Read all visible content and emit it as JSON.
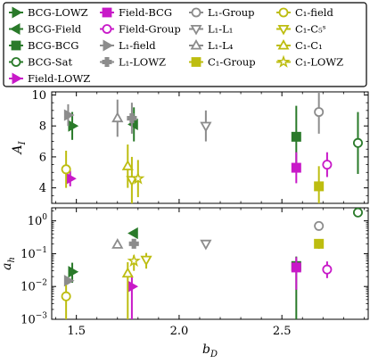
{
  "chart_data": [
    {
      "type": "scatter",
      "ylabel": "A_I",
      "ylim": [
        3,
        10.2
      ],
      "xlim": [
        1.38,
        2.92
      ],
      "yticks": [
        "4",
        "6",
        "8",
        "10"
      ],
      "series": [
        {
          "name": "BCG-LOWZ",
          "color": "#2a7a2a",
          "marker": "tri-right",
          "filled": true,
          "points": [
            {
              "x": 1.48,
              "y": 8.0,
              "err": [
                0.9,
                0.9
              ]
            }
          ]
        },
        {
          "name": "BCG-Field",
          "color": "#2a7a2a",
          "marker": "tri-left",
          "filled": true,
          "points": [
            {
              "x": 1.78,
              "y": 8.1,
              "err": [
                1.1,
                1.1
              ]
            }
          ]
        },
        {
          "name": "BCG-BCG",
          "color": "#2a7a2a",
          "marker": "square",
          "filled": true,
          "points": [
            {
              "x": 2.57,
              "y": 7.3,
              "err": [
                2.3,
                2.0
              ]
            }
          ]
        },
        {
          "name": "BCG-Sat",
          "color": "#2a7a2a",
          "marker": "circle",
          "filled": false,
          "points": [
            {
              "x": 2.87,
              "y": 6.9,
              "err": [
                2.0,
                2.0
              ]
            }
          ]
        },
        {
          "name": "Field-LOWZ",
          "color": "#c819c8",
          "marker": "tri-right",
          "filled": true,
          "points": [
            {
              "x": 1.47,
              "y": 4.6,
              "err": [
                0.5,
                0.5
              ]
            }
          ]
        },
        {
          "name": "Field-BCG",
          "color": "#c819c8",
          "marker": "square",
          "filled": true,
          "points": [
            {
              "x": 2.57,
              "y": 5.3,
              "err": [
                1.0,
                1.0
              ]
            }
          ]
        },
        {
          "name": "Field-Group",
          "color": "#c819c8",
          "marker": "circle",
          "filled": false,
          "points": [
            {
              "x": 2.72,
              "y": 5.5,
              "err": [
                0.8,
                0.8
              ]
            }
          ]
        },
        {
          "name": "L_1-field",
          "color": "#8c8c8c",
          "marker": "tri-right",
          "filled": true,
          "points": [
            {
              "x": 1.46,
              "y": 8.7,
              "err": [
                0.7,
                0.7
              ]
            }
          ]
        },
        {
          "name": "L_1-LOWZ",
          "color": "#8c8c8c",
          "marker": "plus-fill",
          "filled": true,
          "points": [
            {
              "x": 1.77,
              "y": 8.5,
              "err": [
                1.0,
                1.0
              ]
            }
          ]
        },
        {
          "name": "L_1-Group",
          "color": "#8c8c8c",
          "marker": "circle",
          "filled": false,
          "points": [
            {
              "x": 2.68,
              "y": 8.9,
              "err": [
                1.4,
                1.4
              ]
            }
          ]
        },
        {
          "name": "L_1-L_1",
          "color": "#8c8c8c",
          "marker": "tri-down",
          "filled": false,
          "points": [
            {
              "x": 2.13,
              "y": 8.0,
              "err": [
                1.0,
                1.0
              ]
            }
          ]
        },
        {
          "name": "L_1-L_4",
          "color": "#8c8c8c",
          "marker": "tri-up",
          "filled": false,
          "points": [
            {
              "x": 1.7,
              "y": 8.5,
              "err": [
                1.2,
                1.2
              ]
            }
          ]
        },
        {
          "name": "C_1-Group",
          "color": "#bdbd10",
          "marker": "square",
          "filled": true,
          "points": [
            {
              "x": 2.68,
              "y": 4.1,
              "err": [
                1.3,
                1.3
              ]
            }
          ]
        },
        {
          "name": "C_1-field",
          "color": "#bdbd10",
          "marker": "circle",
          "filled": false,
          "points": [
            {
              "x": 1.45,
              "y": 5.2,
              "err": [
                1.2,
                1.2
              ]
            }
          ]
        },
        {
          "name": "C_1-C_5",
          "color": "#bdbd10",
          "marker": "tri-down",
          "filled": false,
          "points": [
            {
              "x": 1.77,
              "y": 4.5,
              "err": [
                1.5,
                1.5
              ]
            }
          ]
        },
        {
          "name": "C_1-C_1",
          "color": "#bdbd10",
          "marker": "tri-up",
          "filled": false,
          "points": [
            {
              "x": 1.75,
              "y": 5.4,
              "err": [
                1.4,
                1.4
              ]
            }
          ]
        },
        {
          "name": "C_1-LOWZ",
          "color": "#bdbd10",
          "marker": "star",
          "filled": false,
          "points": [
            {
              "x": 1.8,
              "y": 4.6,
              "err": [
                1.2,
                1.2
              ]
            }
          ]
        }
      ]
    },
    {
      "type": "scatter",
      "ylabel": "a_h",
      "xlabel": "b_D",
      "yscale": "log",
      "ylim": [
        0.001,
        2.5
      ],
      "xlim": [
        1.38,
        2.92
      ],
      "xticks": [
        "1.5",
        "2.0",
        "2.5"
      ],
      "yticks": [
        "10^-3",
        "10^-2",
        "10^-1",
        "10^0"
      ],
      "series": [
        {
          "name": "BCG-LOWZ",
          "points": [
            {
              "x": 1.48,
              "y": 0.028,
              "err": [
                0.015,
                0.025
              ]
            }
          ]
        },
        {
          "name": "BCG-Field",
          "points": [
            {
              "x": 1.78,
              "y": 0.42
            }
          ]
        },
        {
          "name": "BCG-BCG",
          "points": [
            {
              "x": 2.57,
              "y": 0.042,
              "err": [
                0.0418,
                0.04
              ]
            }
          ]
        },
        {
          "name": "BCG-Sat",
          "points": [
            {
              "x": 2.87,
              "y": 1.8
            }
          ]
        },
        {
          "name": "Field-LOWZ",
          "points": [
            {
              "x": 1.77,
              "y": 0.01,
              "err": [
                0.0095,
                0.012
              ]
            }
          ]
        },
        {
          "name": "Field-BCG",
          "points": [
            {
              "x": 2.57,
              "y": 0.038,
              "err": [
                0.03,
                0.04
              ]
            }
          ]
        },
        {
          "name": "Field-Group",
          "points": [
            {
              "x": 2.72,
              "y": 0.033,
              "err": [
                0.015,
                0.025
              ]
            }
          ]
        },
        {
          "name": "L_1-field",
          "points": [
            {
              "x": 1.46,
              "y": 0.015
            }
          ]
        },
        {
          "name": "L_1-LOWZ",
          "points": [
            {
              "x": 1.78,
              "y": 0.2
            }
          ]
        },
        {
          "name": "L_1-Group",
          "points": [
            {
              "x": 2.68,
              "y": 0.7
            }
          ]
        },
        {
          "name": "L_1-L_1",
          "points": [
            {
              "x": 2.13,
              "y": 0.2
            }
          ]
        },
        {
          "name": "L_1-L_4",
          "points": [
            {
              "x": 1.7,
              "y": 0.19
            }
          ]
        },
        {
          "name": "C_1-Group",
          "points": [
            {
              "x": 2.68,
              "y": 0.2,
              "err": [
                0.06,
                0.08
              ]
            }
          ]
        },
        {
          "name": "C_1-field",
          "points": [
            {
              "x": 1.45,
              "y": 0.005,
              "err": [
                0.0045,
                0.006
              ]
            }
          ]
        },
        {
          "name": "C_1-C_5",
          "points": [
            {
              "x": 1.84,
              "y": 0.065,
              "err": [
                0.03,
                0.04
              ]
            }
          ]
        },
        {
          "name": "C_1-C_1",
          "points": [
            {
              "x": 1.75,
              "y": 0.025,
              "err": [
                0.024,
                0.03
              ]
            }
          ]
        },
        {
          "name": "C_1-LOWZ",
          "points": [
            {
              "x": 1.78,
              "y": 0.06,
              "err": [
                0.03,
                0.03
              ]
            }
          ]
        }
      ]
    }
  ],
  "legend": {
    "placement": "top",
    "entries": [
      {
        "key": "BCG-LOWZ",
        "label": "BCG-LOWZ"
      },
      {
        "key": "BCG-Field",
        "label": "BCG-Field"
      },
      {
        "key": "BCG-BCG",
        "label": "BCG-BCG"
      },
      {
        "key": "BCG-Sat",
        "label": "BCG-Sat"
      },
      {
        "key": "Field-LOWZ",
        "label": "Field-LOWZ"
      },
      {
        "key": "Field-BCG",
        "label": "Field-BCG"
      },
      {
        "key": "Field-Group",
        "label": "Field-Group"
      },
      {
        "key": "L_1-field",
        "label": "L₁-field"
      },
      {
        "key": "L_1-LOWZ",
        "label": "L₁-LOWZ"
      },
      {
        "key": "L_1-Group",
        "label": "L₁-Group"
      },
      {
        "key": "L_1-L_1",
        "label": "L₁-L₁"
      },
      {
        "key": "L_1-L_4",
        "label": "L₁-L₄"
      },
      {
        "key": "C_1-Group",
        "label": "C₁-Group"
      },
      {
        "key": "C_1-field",
        "label": "C₁-field"
      },
      {
        "key": "C_1-C_5",
        "label": "C₁-C₅ˢ"
      },
      {
        "key": "C_1-C_1",
        "label": "C₁-C₁"
      },
      {
        "key": "C_1-LOWZ",
        "label": "C₁-LOWZ"
      }
    ]
  },
  "labels": {
    "top_ylabel": "A_I",
    "bottom_ylabel": "a_h",
    "xlabel": "b_D"
  }
}
